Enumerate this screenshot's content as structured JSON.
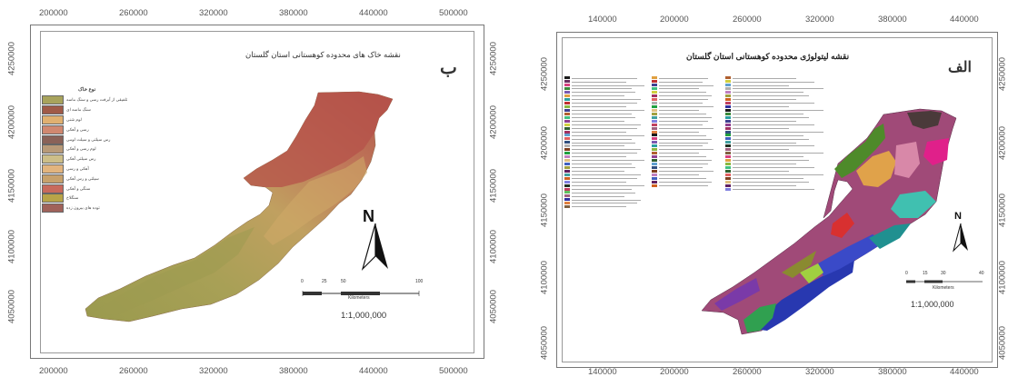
{
  "left_map": {
    "letter": "ب",
    "title": "نقشه خاک های محدوده کوهستانی استان گلستان",
    "x_ticks": [
      "200000",
      "260000",
      "320000",
      "380000",
      "440000",
      "500000"
    ],
    "y_ticks": [
      "4250000",
      "4200000",
      "4150000",
      "4100000",
      "4050000"
    ],
    "legend_title": "نوع خاک",
    "legend": [
      {
        "label": "تلفیقی از آبرفت رسی و سنگ ماسه",
        "color": "#a8a35c"
      },
      {
        "label": "سنگ ماسه ای",
        "color": "#a05a48"
      },
      {
        "label": "لوم شنی",
        "color": "#e0b070"
      },
      {
        "label": "رسی و آهکی",
        "color": "#d08870"
      },
      {
        "label": "رس سیلتی و سیلت لومی",
        "color": "#8a6258"
      },
      {
        "label": "لوم رسی و آهکی",
        "color": "#b89a78"
      },
      {
        "label": "رس سیلتی آهکی",
        "color": "#cdbe88"
      },
      {
        "label": "آهکی و رسی",
        "color": "#e2b47e"
      },
      {
        "label": "سیلتی و رس آهکی",
        "color": "#c7a16c"
      },
      {
        "label": "سنگی و آهکی",
        "color": "#c86a5c"
      },
      {
        "label": "سنگلاخ",
        "color": "#b8a448"
      },
      {
        "label": "توده های بیرون زده",
        "color": "#a0625a"
      }
    ],
    "north": "N",
    "scale_ticks": [
      "0",
      "25",
      "50",
      "100"
    ],
    "scale_unit": "Kilometers",
    "scale_ratio": "1:1,000,000"
  },
  "right_map": {
    "letter": "الف",
    "title": "نقشه لیتولوژی محدوده کوهستانی استان گلستان",
    "x_ticks": [
      "140000",
      "200000",
      "260000",
      "320000",
      "380000",
      "440000"
    ],
    "y_ticks": [
      "4250000",
      "4200000",
      "4150000",
      "4100000",
      "4050000"
    ],
    "north": "N",
    "scale_ticks": [
      "0",
      "15",
      "30",
      "40"
    ],
    "scale_unit": "Kilometers",
    "scale_ratio": "1:1,000,000",
    "legend_colors": [
      "#1a1a1a",
      "#6b3060",
      "#d84080",
      "#3a8a3a",
      "#7a5ab0",
      "#e0a040",
      "#2aa0a0",
      "#c03030",
      "#8ab840",
      "#404090",
      "#b06030",
      "#40c080",
      "#904090",
      "#d0d040",
      "#306030",
      "#a03060",
      "#60a0d0",
      "#e06060",
      "#305080",
      "#b0b0b0",
      "#804020",
      "#20a040",
      "#c080c0",
      "#e0c080",
      "#4060c0",
      "#a0a040",
      "#602060",
      "#40a0a0",
      "#d06020",
      "#8080e0",
      "#203020",
      "#c04060",
      "#60c060",
      "#a06080",
      "#3030a0",
      "#e08040",
      "#806040"
    ]
  }
}
